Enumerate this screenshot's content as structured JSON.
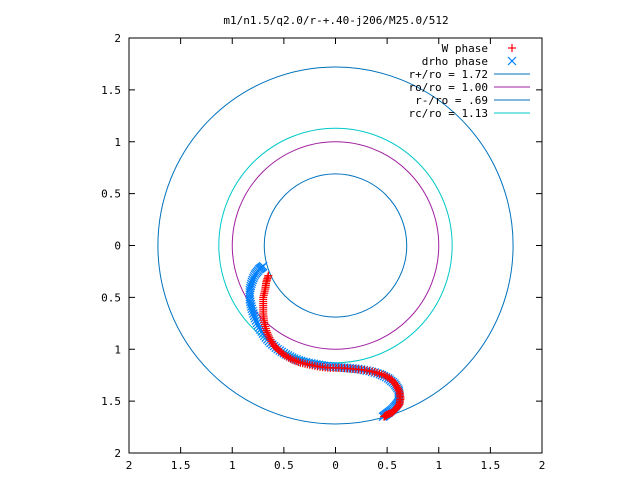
{
  "chart_data": {
    "type": "scatter",
    "title": "m1/n1.5/q2.0/r-+.40-j206/M25.0/512",
    "xlim": [
      -2,
      2
    ],
    "ylim": [
      -2,
      2
    ],
    "x_ticks": [
      -2,
      -1.5,
      -1,
      -0.5,
      0,
      0.5,
      1,
      1.5,
      2
    ],
    "y_ticks": [
      -2,
      -1.5,
      -1,
      -0.5,
      0,
      0.5,
      1,
      1.5,
      2
    ],
    "x_tick_labels": [
      "2",
      "1.5",
      "1",
      "0.5",
      "0",
      "0.5",
      "1",
      "1.5",
      "2"
    ],
    "y_tick_labels": [
      "2",
      "1.5",
      "1",
      "0.5",
      "0",
      "0.5",
      "1",
      "1.5",
      "2"
    ],
    "grid": false,
    "legend_position": "top-right",
    "series": [
      {
        "name": "W phase",
        "marker": "plus",
        "color": "#ff0000",
        "x": [
          -0.65,
          -0.67,
          -0.68,
          -0.7,
          -0.7,
          -0.7,
          -0.69,
          -0.67,
          -0.64,
          -0.6,
          -0.55,
          -0.49,
          -0.42,
          -0.34,
          -0.25,
          -0.15,
          -0.05,
          0.06,
          0.17,
          0.28,
          0.38,
          0.47,
          0.54,
          0.59,
          0.62,
          0.63,
          0.62,
          0.59,
          0.55,
          0.5,
          0.47
        ],
        "y": [
          -0.29,
          -0.35,
          -0.42,
          -0.5,
          -0.58,
          -0.66,
          -0.74,
          -0.82,
          -0.89,
          -0.96,
          -1.01,
          -1.06,
          -1.1,
          -1.13,
          -1.15,
          -1.17,
          -1.18,
          -1.18,
          -1.19,
          -1.2,
          -1.22,
          -1.25,
          -1.29,
          -1.35,
          -1.41,
          -1.47,
          -1.53,
          -1.57,
          -1.61,
          -1.63,
          -1.65
        ]
      },
      {
        "name": "drho phase",
        "marker": "cross",
        "color": "#0080ff",
        "x": [
          -0.7,
          -0.74,
          -0.78,
          -0.81,
          -0.83,
          -0.83,
          -0.81,
          -0.78,
          -0.74,
          -0.69,
          -0.63,
          -0.56,
          -0.48,
          -0.4,
          -0.31,
          -0.21,
          -0.11,
          0.0,
          0.11,
          0.22,
          0.33,
          0.43,
          0.51,
          0.57,
          0.61,
          0.62,
          0.61,
          0.58,
          0.54,
          0.5,
          0.46
        ],
        "y": [
          -0.2,
          -0.23,
          -0.28,
          -0.35,
          -0.43,
          -0.52,
          -0.61,
          -0.7,
          -0.79,
          -0.87,
          -0.94,
          -1.0,
          -1.05,
          -1.09,
          -1.12,
          -1.14,
          -1.16,
          -1.17,
          -1.18,
          -1.19,
          -1.21,
          -1.24,
          -1.28,
          -1.33,
          -1.39,
          -1.45,
          -1.51,
          -1.55,
          -1.59,
          -1.62,
          -1.65
        ]
      },
      {
        "name": "r+/ro = 1.72",
        "type": "circle",
        "radius": 1.72,
        "color": "#0072bd"
      },
      {
        "name": "ro/ro = 1.00",
        "type": "circle",
        "radius": 1.0,
        "color": "#a020a0"
      },
      {
        "name": "r-/ro = .69",
        "type": "circle",
        "radius": 0.69,
        "color": "#0072bd"
      },
      {
        "name": "rc/ro = 1.13",
        "type": "circle",
        "radius": 1.13,
        "color": "#00c8c8"
      }
    ]
  }
}
